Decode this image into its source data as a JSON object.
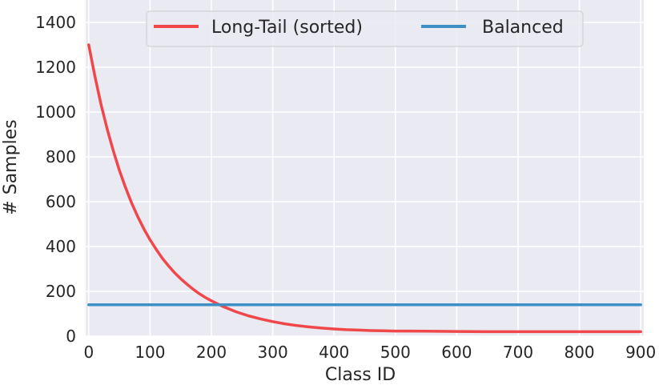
{
  "chart_data": {
    "type": "line",
    "title": "",
    "xlabel": "Class ID",
    "ylabel": "# Samples",
    "xlim": [
      -5,
      905
    ],
    "ylim": [
      0,
      1500
    ],
    "xticks": [
      0,
      100,
      200,
      300,
      400,
      500,
      600,
      700,
      800,
      900
    ],
    "yticks": [
      0,
      200,
      400,
      600,
      800,
      1000,
      1200,
      1400
    ],
    "grid": true,
    "legend_position": "top-center",
    "series": [
      {
        "name": "Long-Tail (sorted)",
        "color": "#f0474a",
        "x": [
          0,
          10,
          20,
          30,
          40,
          50,
          60,
          70,
          80,
          90,
          100,
          110,
          120,
          130,
          140,
          150,
          160,
          170,
          180,
          190,
          200,
          220,
          240,
          260,
          280,
          300,
          320,
          340,
          360,
          380,
          400,
          420,
          440,
          460,
          480,
          500,
          550,
          600,
          650,
          700,
          750,
          800,
          850,
          900
        ],
        "values": [
          1300,
          1160,
          1035,
          925,
          827,
          740,
          663,
          594,
          533,
          478,
          430,
          387,
          348,
          314,
          283,
          256,
          232,
          210,
          190,
          173,
          158,
          131,
          109,
          91,
          77,
          65,
          55,
          47,
          41,
          36,
          32,
          29,
          27,
          25,
          24,
          23,
          22,
          21,
          20,
          20,
          20,
          20,
          20,
          20
        ]
      },
      {
        "name": "Balanced",
        "color": "#3d8fc4",
        "x": [
          0,
          900
        ],
        "values": [
          140,
          140
        ]
      }
    ]
  }
}
